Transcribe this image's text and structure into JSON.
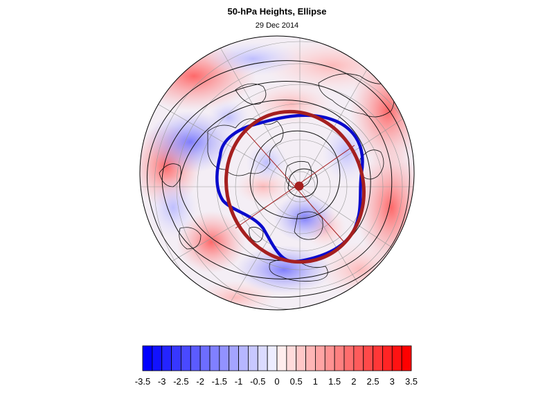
{
  "header": {
    "title": "50-hPa Heights, Ellipse",
    "date": "29 Dec 2014"
  },
  "map": {
    "projection": "north-polar-stereographic",
    "field": "50-hPa height anomaly",
    "height_contours_count": 5,
    "ellipse_color": "#a51f1f",
    "contour_highlight_color": "#1010c0",
    "anomaly_high_color": "#ff0000",
    "anomaly_low_color": "#0000ff"
  },
  "colorbar": {
    "levels": [
      -3.5,
      -3.25,
      -3,
      -2.75,
      -2.5,
      -2.25,
      -2,
      -1.75,
      -1.5,
      -1.25,
      -1,
      -0.75,
      -0.5,
      -0.25,
      0,
      0.25,
      0.5,
      0.75,
      1,
      1.25,
      1.5,
      1.75,
      2,
      2.25,
      2.5,
      2.75,
      3,
      3.25,
      3.5
    ],
    "tick_labels": [
      "-3.5",
      "-3",
      "-2.5",
      "-2",
      "-1.5",
      "-1",
      "-0.5",
      "0",
      "0.5",
      "1",
      "1.5",
      "2",
      "2.5",
      "3",
      "3.5"
    ]
  }
}
